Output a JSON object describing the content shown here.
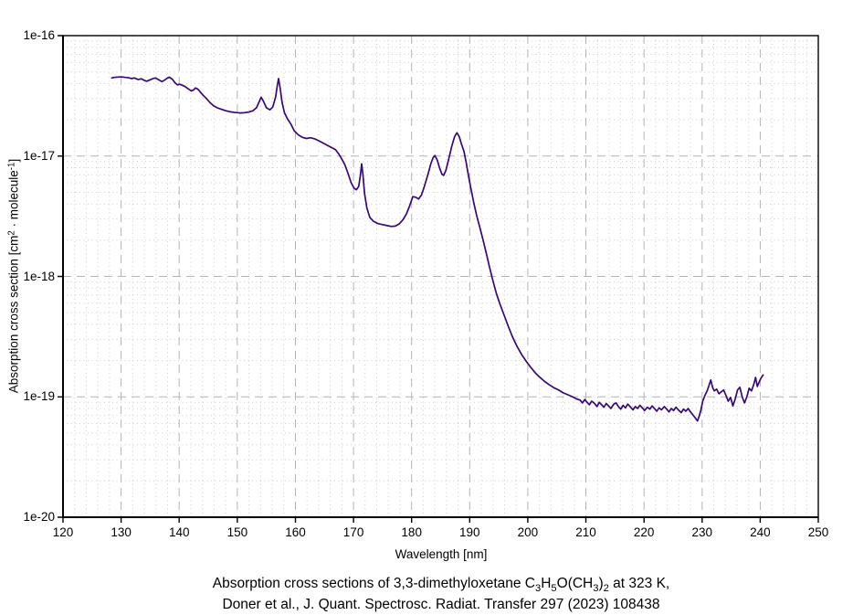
{
  "figure": {
    "background": "#ffffff",
    "caption": {
      "line1_plain": "Absorption cross sections of 3,3-dimethyloxetane C3H5O(CH3)2 at 323 K,",
      "line1_richtext": [
        {
          "t": "Absorption cross sections of 3,3-dimethyloxetane C"
        },
        {
          "t": "3",
          "s": "sub"
        },
        {
          "t": "H"
        },
        {
          "t": "5",
          "s": "sub"
        },
        {
          "t": "O(CH"
        },
        {
          "t": "3",
          "s": "sub"
        },
        {
          "t": ")"
        },
        {
          "t": "2",
          "s": "sub"
        },
        {
          "t": " at 323 K,"
        }
      ],
      "line2": "Doner et al., J. Quant. Spectrosc. Radiat. Transfer 297 (2023) 108438"
    }
  },
  "chart_data": {
    "type": "line",
    "title": "",
    "xlabel": "Wavelength [nm]",
    "ylabel_plain": "Absorption cross section [cm2 · molecule-1]",
    "ylabel_richtext": [
      {
        "t": "Absorption cross section [cm"
      },
      {
        "t": "2",
        "s": "sup"
      },
      {
        "t": " · molecule"
      },
      {
        "t": "-1",
        "s": "sup"
      },
      {
        "t": "]"
      }
    ],
    "x_axis": {
      "min": 120,
      "max": 250,
      "major_step": 10,
      "minor_step": 2,
      "tick_labels": [
        "120",
        "130",
        "140",
        "150",
        "160",
        "170",
        "180",
        "190",
        "200",
        "210",
        "220",
        "230",
        "240",
        "250"
      ]
    },
    "y_axis": {
      "scale": "log",
      "min": 1e-20,
      "max": 1e-16,
      "tick_labels": [
        "1e-16",
        "1e-17",
        "1e-18",
        "1e-19",
        "1e-20"
      ],
      "tick_values": [
        1e-16,
        1e-17,
        1e-18,
        1e-19,
        1e-20
      ],
      "minor_mantissas": [
        2,
        3,
        4,
        5,
        6,
        7,
        8,
        9
      ]
    },
    "grid": {
      "major": true,
      "minor": true,
      "major_color": "#b3b3b3",
      "minor_color": "#cccccc"
    },
    "frame_color": "#000000",
    "series": [
      {
        "name": "absorption cross section at 323 K",
        "color": "#38077a",
        "points": [
          [
            128.4,
            4.45e-17
          ],
          [
            128.8,
            4.5e-17
          ],
          [
            129.3,
            4.52e-17
          ],
          [
            130.0,
            4.55e-17
          ],
          [
            130.7,
            4.5e-17
          ],
          [
            131.2,
            4.48e-17
          ],
          [
            131.8,
            4.4e-17
          ],
          [
            132.3,
            4.45e-17
          ],
          [
            132.9,
            4.32e-17
          ],
          [
            133.5,
            4.38e-17
          ],
          [
            134.0,
            4.25e-17
          ],
          [
            134.4,
            4.18e-17
          ],
          [
            134.9,
            4.28e-17
          ],
          [
            135.5,
            4.4e-17
          ],
          [
            135.9,
            4.45e-17
          ],
          [
            136.4,
            4.32e-17
          ],
          [
            137.0,
            4.15e-17
          ],
          [
            137.5,
            4.28e-17
          ],
          [
            138.0,
            4.45e-17
          ],
          [
            138.3,
            4.52e-17
          ],
          [
            138.8,
            4.35e-17
          ],
          [
            139.3,
            4.05e-17
          ],
          [
            139.7,
            3.9e-17
          ],
          [
            140.1,
            3.95e-17
          ],
          [
            140.5,
            3.88e-17
          ],
          [
            141.0,
            3.78e-17
          ],
          [
            141.6,
            3.6e-17
          ],
          [
            142.1,
            3.47e-17
          ],
          [
            142.5,
            3.55e-17
          ],
          [
            142.8,
            3.68e-17
          ],
          [
            143.2,
            3.6e-17
          ],
          [
            143.6,
            3.42e-17
          ],
          [
            144.1,
            3.2e-17
          ],
          [
            144.7,
            3e-17
          ],
          [
            145.3,
            2.78e-17
          ],
          [
            145.9,
            2.62e-17
          ],
          [
            146.5,
            2.52e-17
          ],
          [
            147.2,
            2.45e-17
          ],
          [
            148.0,
            2.38e-17
          ],
          [
            148.8,
            2.33e-17
          ],
          [
            149.6,
            2.3e-17
          ],
          [
            150.4,
            2.28e-17
          ],
          [
            151.2,
            2.29e-17
          ],
          [
            152.0,
            2.32e-17
          ],
          [
            152.7,
            2.38e-17
          ],
          [
            153.3,
            2.52e-17
          ],
          [
            153.8,
            2.85e-17
          ],
          [
            154.1,
            3.08e-17
          ],
          [
            154.5,
            2.85e-17
          ],
          [
            155.0,
            2.52e-17
          ],
          [
            155.6,
            2.42e-17
          ],
          [
            156.1,
            2.55e-17
          ],
          [
            156.6,
            3.1e-17
          ],
          [
            156.9,
            3.9e-17
          ],
          [
            157.1,
            4.4e-17
          ],
          [
            157.4,
            3.6e-17
          ],
          [
            157.7,
            2.8e-17
          ],
          [
            158.1,
            2.3e-17
          ],
          [
            158.6,
            2.05e-17
          ],
          [
            159.2,
            1.85e-17
          ],
          [
            159.8,
            1.62e-17
          ],
          [
            160.5,
            1.5e-17
          ],
          [
            161.2,
            1.43e-17
          ],
          [
            161.9,
            1.4e-17
          ],
          [
            162.6,
            1.42e-17
          ],
          [
            163.3,
            1.39e-17
          ],
          [
            164.0,
            1.34e-17
          ],
          [
            164.8,
            1.28e-17
          ],
          [
            165.6,
            1.22e-17
          ],
          [
            166.3,
            1.17e-17
          ],
          [
            166.9,
            1.13e-17
          ],
          [
            167.4,
            1.05e-17
          ],
          [
            167.9,
            9.6e-18
          ],
          [
            168.5,
            8.5e-18
          ],
          [
            169.0,
            7.3e-18
          ],
          [
            169.6,
            6e-18
          ],
          [
            170.1,
            5.4e-18
          ],
          [
            170.5,
            5.25e-18
          ],
          [
            170.9,
            5.6e-18
          ],
          [
            171.2,
            7e-18
          ],
          [
            171.4,
            8.6e-18
          ],
          [
            171.6,
            7.2e-18
          ],
          [
            171.9,
            4.9e-18
          ],
          [
            172.3,
            3.7e-18
          ],
          [
            172.8,
            3.1e-18
          ],
          [
            173.4,
            2.88e-18
          ],
          [
            174.1,
            2.76e-18
          ],
          [
            174.9,
            2.7e-18
          ],
          [
            175.7,
            2.65e-18
          ],
          [
            176.5,
            2.6e-18
          ],
          [
            177.2,
            2.62e-18
          ],
          [
            177.9,
            2.74e-18
          ],
          [
            178.5,
            2.95e-18
          ],
          [
            179.1,
            3.3e-18
          ],
          [
            179.7,
            3.9e-18
          ],
          [
            180.2,
            4.6e-18
          ],
          [
            180.7,
            4.55e-18
          ],
          [
            181.2,
            4.4e-18
          ],
          [
            181.7,
            4.75e-18
          ],
          [
            182.2,
            5.6e-18
          ],
          [
            182.8,
            7e-18
          ],
          [
            183.3,
            8.6e-18
          ],
          [
            183.7,
            9.7e-18
          ],
          [
            184.0,
            1.01e-17
          ],
          [
            184.4,
            9.3e-18
          ],
          [
            184.8,
            8e-18
          ],
          [
            185.2,
            7.1e-18
          ],
          [
            185.5,
            6.9e-18
          ],
          [
            185.9,
            7.6e-18
          ],
          [
            186.4,
            9.5e-18
          ],
          [
            186.9,
            1.2e-17
          ],
          [
            187.4,
            1.45e-17
          ],
          [
            187.8,
            1.56e-17
          ],
          [
            188.2,
            1.45e-17
          ],
          [
            188.6,
            1.25e-17
          ],
          [
            189.0,
            1.1e-17
          ],
          [
            189.4,
            8.8e-18
          ],
          [
            189.8,
            6.8e-18
          ],
          [
            190.2,
            5.4e-18
          ],
          [
            190.7,
            4.1e-18
          ],
          [
            191.2,
            3.2e-18
          ],
          [
            191.7,
            2.6e-18
          ],
          [
            192.2,
            2.1e-18
          ],
          [
            192.8,
            1.6e-18
          ],
          [
            193.4,
            1.2e-18
          ],
          [
            194.0,
            9.2e-19
          ],
          [
            194.6,
            7.2e-19
          ],
          [
            195.2,
            5.9e-19
          ],
          [
            195.9,
            4.8e-19
          ],
          [
            196.6,
            3.9e-19
          ],
          [
            197.3,
            3.2e-19
          ],
          [
            198.1,
            2.65e-19
          ],
          [
            198.9,
            2.26e-19
          ],
          [
            199.7,
            1.98e-19
          ],
          [
            200.5,
            1.76e-19
          ],
          [
            201.3,
            1.58e-19
          ],
          [
            202.1,
            1.45e-19
          ],
          [
            202.9,
            1.34e-19
          ],
          [
            203.7,
            1.26e-19
          ],
          [
            204.5,
            1.19e-19
          ],
          [
            205.3,
            1.14e-19
          ],
          [
            206.1,
            1.08e-19
          ],
          [
            206.9,
            1.04e-19
          ],
          [
            207.7,
            1e-19
          ],
          [
            208.4,
            9.6e-20
          ],
          [
            209.0,
            9.4e-20
          ],
          [
            209.4,
            8.9e-20
          ],
          [
            209.8,
            9.5e-20
          ],
          [
            210.2,
            9e-20
          ],
          [
            210.6,
            8.6e-20
          ],
          [
            211.0,
            9.2e-20
          ],
          [
            211.5,
            8.8e-20
          ],
          [
            211.9,
            8.3e-20
          ],
          [
            212.3,
            9e-20
          ],
          [
            212.7,
            8.6e-20
          ],
          [
            213.1,
            8.2e-20
          ],
          [
            213.5,
            8.8e-20
          ],
          [
            213.9,
            8.4e-20
          ],
          [
            214.3,
            8e-20
          ],
          [
            214.8,
            8.7e-20
          ],
          [
            215.2,
            8.9e-20
          ],
          [
            215.6,
            8.3e-20
          ],
          [
            216.0,
            7.9e-20
          ],
          [
            216.4,
            8.5e-20
          ],
          [
            216.8,
            8.1e-20
          ],
          [
            217.2,
            8.7e-20
          ],
          [
            217.7,
            8.2e-20
          ],
          [
            218.1,
            7.8e-20
          ],
          [
            218.5,
            8.3e-20
          ],
          [
            218.9,
            8e-20
          ],
          [
            219.3,
            8.5e-20
          ],
          [
            219.7,
            8.1e-20
          ],
          [
            220.1,
            7.7e-20
          ],
          [
            220.6,
            8.2e-20
          ],
          [
            221.0,
            7.9e-20
          ],
          [
            221.4,
            8.4e-20
          ],
          [
            221.8,
            8e-20
          ],
          [
            222.2,
            7.6e-20
          ],
          [
            222.6,
            8.1e-20
          ],
          [
            223.0,
            7.8e-20
          ],
          [
            223.5,
            8.3e-20
          ],
          [
            223.9,
            7.9e-20
          ],
          [
            224.3,
            7.5e-20
          ],
          [
            224.7,
            8e-20
          ],
          [
            225.1,
            7.7e-20
          ],
          [
            225.5,
            8.2e-20
          ],
          [
            225.9,
            7.8e-20
          ],
          [
            226.4,
            7.4e-20
          ],
          [
            226.8,
            7.9e-20
          ],
          [
            227.2,
            7.6e-20
          ],
          [
            227.6,
            8e-20
          ],
          [
            228.0,
            7.5e-20
          ],
          [
            228.4,
            7.1e-20
          ],
          [
            228.8,
            6.7e-20
          ],
          [
            229.2,
            6.3e-20
          ],
          [
            229.5,
            6.9e-20
          ],
          [
            229.8,
            7.8e-20
          ],
          [
            230.1,
            9.2e-20
          ],
          [
            230.5,
            1.03e-19
          ],
          [
            230.9,
            1.13e-19
          ],
          [
            231.2,
            1.25e-19
          ],
          [
            231.5,
            1.38e-19
          ],
          [
            231.8,
            1.2e-19
          ],
          [
            232.1,
            1.12e-19
          ],
          [
            232.5,
            1.16e-19
          ],
          [
            232.9,
            1.06e-19
          ],
          [
            233.3,
            1.1e-19
          ],
          [
            233.7,
            1.14e-19
          ],
          [
            234.1,
            1.03e-19
          ],
          [
            234.5,
            9.2e-20
          ],
          [
            234.9,
            9.9e-20
          ],
          [
            235.3,
            8.4e-20
          ],
          [
            235.7,
            9.6e-20
          ],
          [
            236.1,
            1.14e-19
          ],
          [
            236.5,
            1.2e-19
          ],
          [
            236.9,
            1e-19
          ],
          [
            237.3,
            8.9e-20
          ],
          [
            237.7,
            1e-19
          ],
          [
            238.1,
            1.18e-19
          ],
          [
            238.5,
            1.12e-19
          ],
          [
            238.9,
            1.27e-19
          ],
          [
            239.2,
            1.45e-19
          ],
          [
            239.5,
            1.22e-19
          ],
          [
            239.8,
            1.32e-19
          ],
          [
            240.1,
            1.42e-19
          ],
          [
            240.5,
            1.52e-19
          ]
        ]
      }
    ]
  }
}
